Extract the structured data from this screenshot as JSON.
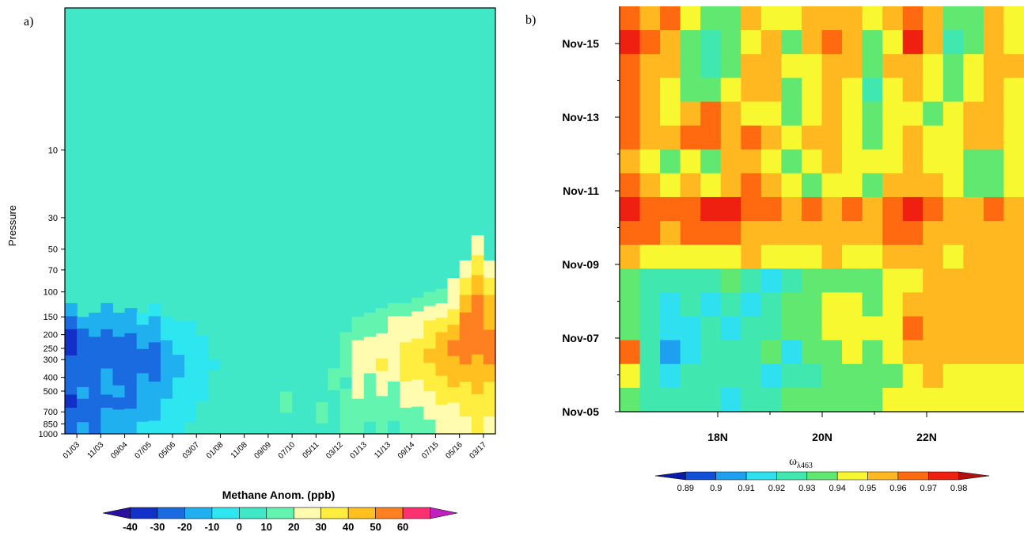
{
  "chart_data": [
    {
      "type": "heatmap",
      "panel_label": "a)",
      "ylabel": "Pressure",
      "y_scale": "log",
      "y_reversed": true,
      "ylim": [
        1000,
        1
      ],
      "yticks": [
        10,
        30,
        50,
        70,
        100,
        150,
        200,
        250,
        300,
        400,
        500,
        700,
        850,
        1000
      ],
      "ytick_labels": [
        "10",
        "30",
        "50",
        "70",
        "100",
        "150",
        "200",
        "250",
        "300",
        "400",
        "500",
        "700",
        "850",
        "1000"
      ],
      "xtick_labels": [
        "01/03",
        "11/03",
        "09/04",
        "07/05",
        "05/06",
        "03/07",
        "01/08",
        "11/08",
        "09/09",
        "07/10",
        "05/11",
        "03/12",
        "01/13",
        "11/13",
        "09/14",
        "07/15",
        "05/16",
        "03/17"
      ],
      "colorbar": {
        "title": "Methane Anom. (ppb)",
        "levels": [
          -40,
          -30,
          -20,
          -10,
          0,
          10,
          20,
          30,
          40,
          50,
          60
        ],
        "labels": [
          "-40",
          "-30",
          "-20",
          "-10",
          "0",
          "10",
          "20",
          "30",
          "40",
          "50",
          "60"
        ],
        "colors": [
          "#2b0f9e",
          "#1030c8",
          "#1a6ae0",
          "#20b0f0",
          "#2ee6f0",
          "#40e8c8",
          "#63f5b0",
          "#fffcb0",
          "#ffee40",
          "#ffc020",
          "#ff8020",
          "#ff3070",
          "#c020c0"
        ]
      },
      "columns": [
        {
          "top": 120,
          "vals": [
            -20,
            -30,
            -35,
            -35,
            -30,
            -30,
            -25,
            -35,
            -30,
            -25
          ]
        },
        {
          "top": 150,
          "vals": [
            -15,
            -25,
            -30,
            -30,
            -30,
            -25,
            -20,
            -30,
            -25,
            -20
          ]
        },
        {
          "top": 140,
          "vals": [
            -15,
            -20,
            -25,
            -30,
            -30,
            -25,
            -25,
            -30,
            -30,
            -25
          ]
        },
        {
          "top": 120,
          "vals": [
            -15,
            -20,
            -25,
            -25,
            -25,
            -20,
            -20,
            -25,
            -20,
            -15
          ]
        },
        {
          "top": 140,
          "vals": [
            -15,
            -20,
            -25,
            -25,
            -30,
            -25,
            -20,
            -25,
            -20,
            -15
          ]
        },
        {
          "top": 130,
          "vals": [
            -15,
            -20,
            -25,
            -30,
            -30,
            -30,
            -25,
            -25,
            -20,
            -15
          ]
        },
        {
          "top": 140,
          "vals": [
            -10,
            -15,
            -20,
            -25,
            -25,
            -20,
            -20,
            -15,
            -15,
            -10
          ]
        },
        {
          "top": 120,
          "vals": [
            -10,
            -15,
            -20,
            -25,
            -30,
            -25,
            -20,
            -20,
            -15,
            -10
          ]
        },
        {
          "top": 150,
          "vals": [
            -5,
            -10,
            -15,
            -20,
            -20,
            -15,
            -15,
            -10,
            -10,
            -5
          ]
        },
        {
          "top": 160,
          "vals": [
            -5,
            -10,
            -10,
            -15,
            -15,
            -10,
            -10,
            -10,
            -5,
            -5
          ]
        },
        {
          "top": 160,
          "vals": [
            -5,
            -5,
            -10,
            -10,
            -10,
            -10,
            -5,
            -5,
            -5,
            0
          ]
        },
        {
          "top": 170,
          "vals": [
            0,
            -5,
            -5,
            -10,
            -5,
            -5,
            -5,
            0,
            0,
            0
          ]
        },
        {
          "top": 180,
          "vals": [
            0,
            0,
            0,
            -5,
            0,
            0,
            0,
            0,
            5,
            5
          ]
        },
        {
          "top": 180,
          "vals": [
            5,
            5,
            5,
            5,
            5,
            5,
            5,
            5,
            5,
            5
          ]
        },
        {
          "top": 180,
          "vals": [
            5,
            5,
            5,
            5,
            5,
            5,
            5,
            5,
            5,
            5
          ]
        },
        {
          "top": 180,
          "vals": [
            5,
            5,
            5,
            5,
            5,
            5,
            5,
            5,
            5,
            5
          ]
        },
        {
          "top": 180,
          "vals": [
            5,
            5,
            5,
            5,
            5,
            5,
            5,
            5,
            5,
            5
          ]
        },
        {
          "top": 180,
          "vals": [
            5,
            5,
            5,
            5,
            5,
            5,
            5,
            5,
            5,
            5
          ]
        },
        {
          "top": 180,
          "vals": [
            5,
            5,
            5,
            5,
            5,
            5,
            10,
            10,
            5,
            5
          ]
        },
        {
          "top": 180,
          "vals": [
            5,
            5,
            5,
            5,
            5,
            5,
            5,
            5,
            5,
            5
          ]
        },
        {
          "top": 180,
          "vals": [
            5,
            5,
            5,
            5,
            5,
            5,
            5,
            5,
            5,
            5
          ]
        },
        {
          "top": 180,
          "vals": [
            5,
            5,
            5,
            5,
            5,
            5,
            5,
            10,
            10,
            5
          ]
        },
        {
          "top": 170,
          "vals": [
            5,
            5,
            5,
            5,
            10,
            10,
            5,
            5,
            5,
            5
          ]
        },
        {
          "top": 160,
          "vals": [
            5,
            10,
            10,
            10,
            10,
            5,
            10,
            15,
            15,
            10
          ]
        },
        {
          "top": 150,
          "vals": [
            10,
            15,
            20,
            25,
            25,
            25,
            20,
            15,
            10,
            10
          ]
        },
        {
          "top": 140,
          "vals": [
            10,
            15,
            20,
            25,
            20,
            15,
            15,
            10,
            10,
            5
          ]
        },
        {
          "top": 130,
          "vals": [
            10,
            15,
            20,
            25,
            30,
            25,
            20,
            15,
            10,
            10
          ]
        },
        {
          "top": 120,
          "vals": [
            15,
            20,
            25,
            25,
            25,
            20,
            15,
            10,
            10,
            5
          ]
        },
        {
          "top": 120,
          "vals": [
            15,
            20,
            25,
            30,
            30,
            30,
            25,
            20,
            15,
            10
          ]
        },
        {
          "top": 110,
          "vals": [
            15,
            20,
            25,
            30,
            35,
            30,
            25,
            20,
            15,
            10
          ]
        },
        {
          "top": 100,
          "vals": [
            15,
            20,
            30,
            35,
            40,
            35,
            30,
            25,
            20,
            15
          ]
        },
        {
          "top": 95,
          "vals": [
            15,
            25,
            30,
            40,
            45,
            40,
            35,
            30,
            25,
            20
          ]
        },
        {
          "top": 80,
          "vals": [
            20,
            25,
            35,
            45,
            50,
            45,
            40,
            30,
            25,
            20
          ]
        },
        {
          "top": 60,
          "vals": [
            25,
            30,
            40,
            50,
            55,
            50,
            45,
            35,
            30,
            25
          ]
        },
        {
          "top": 40,
          "vals": [
            25,
            35,
            45,
            50,
            55,
            55,
            45,
            40,
            35,
            30
          ]
        },
        {
          "top": 60,
          "vals": [
            20,
            30,
            40,
            45,
            50,
            50,
            40,
            35,
            30,
            25
          ]
        }
      ]
    },
    {
      "type": "heatmap",
      "panel_label": "b)",
      "xtick_labels": [
        "18N",
        "20N",
        "22N"
      ],
      "ytick_labels": [
        "Nov-15",
        "Nov-13",
        "Nov-11",
        "Nov-09",
        "Nov-07",
        "Nov-05"
      ],
      "colorbar": {
        "title_symbol": "ω",
        "title_subscript": "λ463",
        "levels": [
          0.89,
          0.9,
          0.91,
          0.92,
          0.93,
          0.94,
          0.95,
          0.96,
          0.97,
          0.98
        ],
        "labels": [
          "0.89",
          "0.9",
          "0.91",
          "0.92",
          "0.93",
          "0.94",
          "0.95",
          "0.96",
          "0.97",
          "0.98"
        ],
        "colors": [
          "#0a1aa8",
          "#1050d8",
          "#1ea0f0",
          "#2ee0f0",
          "#40e8b0",
          "#60e870",
          "#f8f830",
          "#ffb820",
          "#ff6a10",
          "#f02010",
          "#b01010"
        ]
      },
      "grid": [
        [
          0.965,
          0.955,
          0.96,
          0.945,
          0.93,
          0.935,
          0.95,
          0.945,
          0.94,
          0.95,
          0.955,
          0.95,
          0.94,
          0.95,
          0.965,
          0.95,
          0.93,
          0.93,
          0.95,
          0.94
        ],
        [
          0.97,
          0.96,
          0.955,
          0.935,
          0.92,
          0.93,
          0.945,
          0.95,
          0.935,
          0.95,
          0.96,
          0.955,
          0.935,
          0.945,
          0.975,
          0.955,
          0.925,
          0.935,
          0.955,
          0.945
        ],
        [
          0.965,
          0.95,
          0.95,
          0.93,
          0.925,
          0.935,
          0.95,
          0.955,
          0.94,
          0.945,
          0.955,
          0.95,
          0.93,
          0.95,
          0.955,
          0.945,
          0.93,
          0.94,
          0.95,
          0.95
        ],
        [
          0.96,
          0.955,
          0.94,
          0.935,
          0.93,
          0.94,
          0.955,
          0.95,
          0.935,
          0.94,
          0.95,
          0.945,
          0.925,
          0.945,
          0.95,
          0.94,
          0.935,
          0.945,
          0.955,
          0.945
        ],
        [
          0.965,
          0.95,
          0.945,
          0.955,
          0.965,
          0.95,
          0.945,
          0.94,
          0.93,
          0.945,
          0.955,
          0.94,
          0.93,
          0.94,
          0.945,
          0.935,
          0.94,
          0.95,
          0.95,
          0.94
        ],
        [
          0.96,
          0.955,
          0.95,
          0.96,
          0.965,
          0.955,
          0.96,
          0.95,
          0.94,
          0.95,
          0.955,
          0.945,
          0.935,
          0.945,
          0.95,
          0.94,
          0.945,
          0.955,
          0.95,
          0.945
        ],
        [
          0.955,
          0.945,
          0.93,
          0.94,
          0.935,
          0.95,
          0.955,
          0.94,
          0.935,
          0.94,
          0.95,
          0.945,
          0.94,
          0.945,
          0.955,
          0.945,
          0.94,
          0.935,
          0.93,
          0.94
        ],
        [
          0.96,
          0.95,
          0.94,
          0.95,
          0.945,
          0.955,
          0.96,
          0.95,
          0.94,
          0.935,
          0.945,
          0.94,
          0.935,
          0.95,
          0.955,
          0.95,
          0.945,
          0.935,
          0.93,
          0.945
        ],
        [
          0.97,
          0.965,
          0.96,
          0.965,
          0.97,
          0.975,
          0.965,
          0.96,
          0.955,
          0.96,
          0.955,
          0.96,
          0.955,
          0.965,
          0.97,
          0.96,
          0.955,
          0.955,
          0.96,
          0.955
        ],
        [
          0.965,
          0.96,
          0.955,
          0.96,
          0.965,
          0.96,
          0.955,
          0.955,
          0.95,
          0.955,
          0.95,
          0.955,
          0.95,
          0.96,
          0.965,
          0.955,
          0.95,
          0.95,
          0.955,
          0.95
        ],
        [
          0.95,
          0.945,
          0.94,
          0.945,
          0.94,
          0.945,
          0.95,
          0.945,
          0.94,
          0.945,
          0.95,
          0.945,
          0.94,
          0.95,
          0.955,
          0.95,
          0.945,
          0.95,
          0.955,
          0.95
        ],
        [
          0.935,
          0.925,
          0.92,
          0.925,
          0.925,
          0.93,
          0.92,
          0.91,
          0.925,
          0.93,
          0.935,
          0.935,
          0.93,
          0.94,
          0.945,
          0.95,
          0.95,
          0.955,
          0.955,
          0.95
        ],
        [
          0.93,
          0.92,
          0.915,
          0.92,
          0.915,
          0.92,
          0.915,
          0.92,
          0.93,
          0.935,
          0.94,
          0.94,
          0.935,
          0.945,
          0.955,
          0.95,
          0.955,
          0.95,
          0.955,
          0.955
        ],
        [
          0.935,
          0.92,
          0.91,
          0.915,
          0.92,
          0.91,
          0.92,
          0.925,
          0.93,
          0.935,
          0.945,
          0.945,
          0.94,
          0.94,
          0.965,
          0.95,
          0.95,
          0.955,
          0.955,
          0.95
        ],
        [
          0.96,
          0.925,
          0.905,
          0.915,
          0.925,
          0.92,
          0.925,
          0.93,
          0.915,
          0.93,
          0.935,
          0.945,
          0.935,
          0.94,
          0.95,
          0.955,
          0.95,
          0.955,
          0.95,
          0.955
        ],
        [
          0.94,
          0.925,
          0.915,
          0.92,
          0.925,
          0.92,
          0.925,
          0.915,
          0.92,
          0.925,
          0.93,
          0.93,
          0.93,
          0.935,
          0.945,
          0.95,
          0.945,
          0.945,
          0.94,
          0.94
        ],
        [
          0.935,
          0.925,
          0.92,
          0.92,
          0.92,
          0.915,
          0.92,
          0.925,
          0.93,
          0.93,
          0.935,
          0.935,
          0.935,
          0.94,
          0.94,
          0.945,
          0.945,
          0.945,
          0.945,
          0.94
        ]
      ]
    }
  ]
}
